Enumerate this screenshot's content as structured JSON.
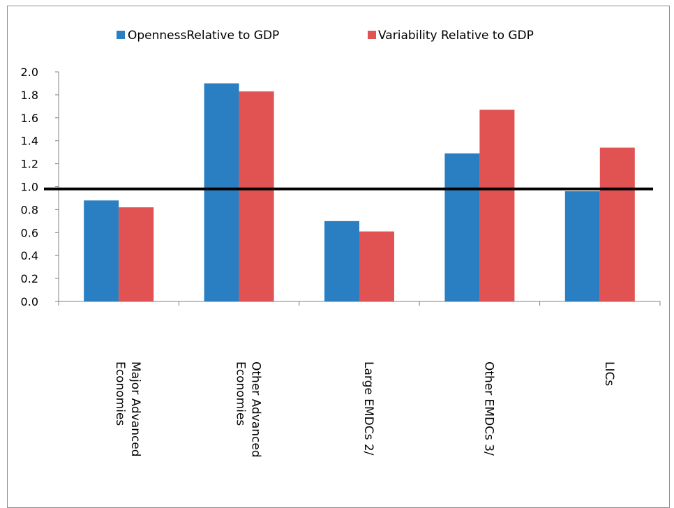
{
  "chart_data": {
    "type": "bar",
    "categories": [
      [
        "Major Advanced",
        "Economies"
      ],
      [
        "Other Advanced",
        "Economies"
      ],
      [
        "Large EMDCs 2/"
      ],
      [
        "Other EMDCs 3/"
      ],
      [
        "LICs"
      ]
    ],
    "series": [
      {
        "name": "OpennessRelative to GDP",
        "color": "#2a7fc2",
        "values": [
          0.88,
          1.9,
          0.7,
          1.29,
          0.96
        ]
      },
      {
        "name": "Variability Relative to GDP",
        "color": "#e15252",
        "values": [
          0.82,
          1.83,
          0.61,
          1.67,
          1.34
        ]
      }
    ],
    "yticks": [
      "0.0",
      "0.2",
      "0.4",
      "0.6",
      "0.8",
      "1.0",
      "1.2",
      "1.4",
      "1.6",
      "1.8",
      "2.0"
    ],
    "ylim": [
      0,
      2.0
    ],
    "reference_line": {
      "y_start": 0.98,
      "y_end": 0.98,
      "color": "#000000"
    },
    "legend_position": "top-center",
    "grid": false,
    "title": "",
    "xlabel": "",
    "ylabel": ""
  }
}
